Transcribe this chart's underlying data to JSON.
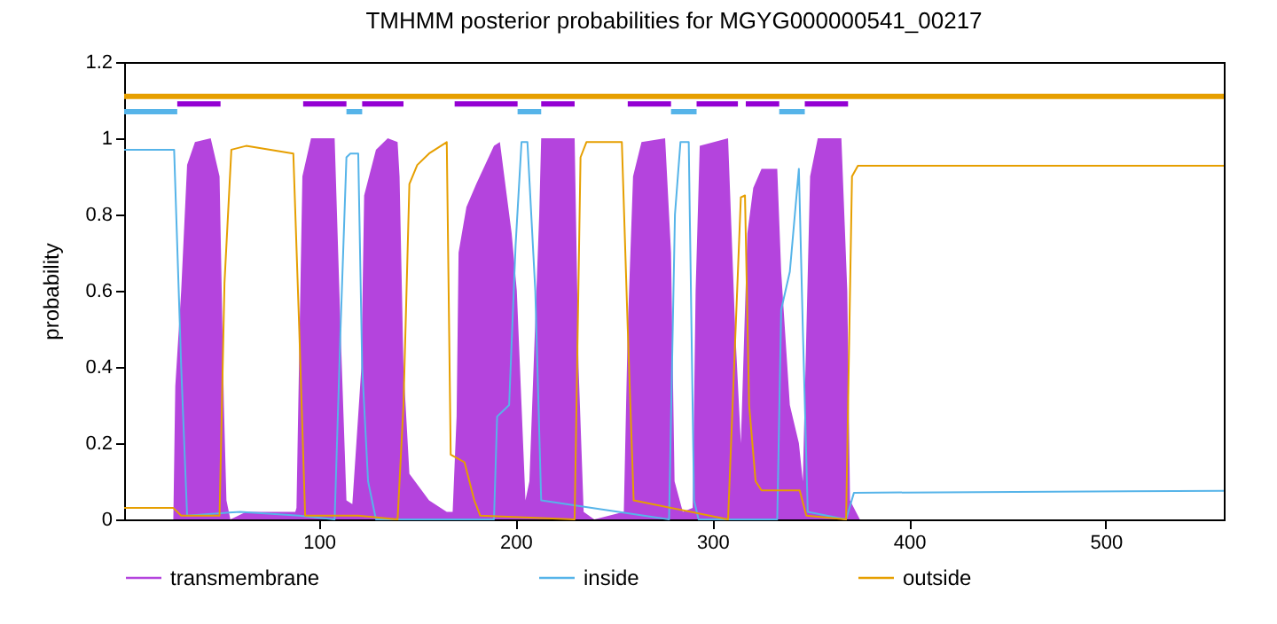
{
  "chart_data": {
    "type": "line",
    "title": "TMHMM posterior probabilities for MGYG000000541_00217",
    "ylabel": "probability",
    "xlim": [
      1,
      560
    ],
    "xticks": [
      100,
      200,
      300,
      400,
      500
    ],
    "ylim": [
      0,
      1.2
    ],
    "yticks": [
      {
        "value": 0,
        "label": "0"
      },
      0.2,
      0.4,
      0.6,
      0.8,
      {
        "value": 1,
        "label": "1"
      },
      1.2
    ],
    "grid": false,
    "legend": "bottom",
    "marker": "none",
    "series": [
      {
        "name": "transmembrane",
        "type": "area",
        "color": "#b444dd",
        "x": [
          1,
          26,
          27,
          30,
          33,
          37,
          45,
          49.5,
          51.7,
          53,
          55,
          63,
          75,
          88,
          88.6,
          91.6,
          96,
          108,
          111,
          114,
          117,
          121.6,
          123,
          129,
          135,
          140,
          141,
          143,
          146,
          156,
          165,
          168,
          170,
          171,
          175,
          180,
          189,
          192,
          198,
          200.6,
          203,
          205,
          207,
          212,
          213,
          230,
          232,
          234.6,
          240,
          255,
          257,
          259.7,
          264,
          276,
          279,
          280.8,
          285,
          290,
          291.5,
          293.6,
          308,
          311.6,
          314.5,
          317.8,
          320.8,
          325,
          333,
          335,
          339.4,
          344,
          346,
          347.6,
          349.7,
          353.6,
          365.6,
          368.6,
          370,
          375,
          560
        ],
        "values": [
          0,
          0,
          0.35,
          0.6,
          0.93,
          0.99,
          1.0,
          0.9,
          0.3,
          0.05,
          0,
          0.02,
          0.02,
          0.02,
          0.03,
          0.9,
          1.0,
          1.0,
          0.5,
          0.05,
          0.04,
          0.4,
          0.85,
          0.97,
          1.0,
          0.99,
          0.9,
          0.4,
          0.12,
          0.05,
          0.02,
          0.02,
          0.27,
          0.7,
          0.82,
          0.88,
          0.98,
          0.99,
          0.75,
          0.6,
          0.3,
          0.05,
          0.1,
          0.8,
          1.0,
          1.0,
          0.4,
          0.02,
          0,
          0.02,
          0.5,
          0.9,
          0.99,
          1.0,
          0.7,
          0.1,
          0.02,
          0.03,
          0.6,
          0.98,
          1.0,
          0.5,
          0.2,
          0.75,
          0.87,
          0.92,
          0.92,
          0.65,
          0.3,
          0.2,
          0.1,
          0.45,
          0.9,
          1.0,
          1.0,
          0.6,
          0.05,
          0,
          0
        ]
      },
      {
        "name": "inside",
        "color": "#56b4e9",
        "x": [
          1,
          26.4,
          30,
          33,
          60,
          90,
          108,
          111,
          114,
          116,
          120,
          122,
          125,
          129,
          189,
          190.6,
          196.7,
          200,
          203,
          206,
          210,
          213,
          278,
          281,
          283.8,
          288,
          290.7,
          293,
          333,
          335,
          339.4,
          344,
          346,
          348.5,
          368,
          372,
          560
        ],
        "values": [
          0.97,
          0.97,
          0.4,
          0.01,
          0.02,
          0.01,
          0,
          0.5,
          0.95,
          0.96,
          0.96,
          0.4,
          0.1,
          0,
          0,
          0.27,
          0.3,
          0.72,
          0.99,
          0.99,
          0.6,
          0.05,
          0,
          0.8,
          0.99,
          0.99,
          0.05,
          0,
          0,
          0.55,
          0.65,
          0.92,
          0.5,
          0.02,
          0,
          0.07,
          0.075
        ]
      },
      {
        "name": "outside",
        "color": "#e69f00",
        "x": [
          1,
          26,
          30,
          49.5,
          52,
          55.5,
          63,
          87,
          90,
          93,
          120,
          140,
          143,
          146,
          150,
          156,
          165,
          167,
          174,
          179,
          182,
          230,
          233,
          236,
          254,
          257,
          260,
          308,
          314.5,
          316.6,
          318.7,
          322,
          325,
          344.4,
          347.8,
          368,
          371,
          374,
          560
        ],
        "values": [
          0.03,
          0.03,
          0.01,
          0.01,
          0.62,
          0.97,
          0.98,
          0.96,
          0.5,
          0.01,
          0.01,
          0,
          0.3,
          0.88,
          0.93,
          0.96,
          0.99,
          0.17,
          0.15,
          0.05,
          0.01,
          0,
          0.95,
          0.99,
          0.99,
          0.5,
          0.05,
          0,
          0.845,
          0.85,
          0.3,
          0.1,
          0.076,
          0.076,
          0.01,
          0,
          0.9,
          0.928,
          0.928
        ]
      },
      {
        "color": "#e69f00",
        "x": [
          1,
          560
        ],
        "values": [
          1.11,
          1.11
        ]
      },
      {
        "color": "#56b4e9",
        "x": [
          1,
          28,
          29,
          114,
          122,
          123,
          201,
          213,
          214,
          279,
          292,
          293,
          334,
          347
        ],
        "values": [
          1.07,
          1.07,
          null,
          1.07,
          1.07,
          null,
          1.07,
          1.07,
          null,
          1.07,
          1.07,
          null,
          1.07,
          1.07
        ]
      },
      {
        "color": "#9400d3",
        "x": [
          28,
          50,
          51,
          92,
          114,
          115,
          122,
          143,
          144,
          169,
          201,
          202,
          213,
          230,
          231,
          257,
          279,
          280,
          292,
          313,
          314,
          317,
          334,
          335,
          347,
          369
        ],
        "values": [
          1.09,
          1.09,
          null,
          1.09,
          1.09,
          null,
          1.09,
          1.09,
          null,
          1.09,
          1.09,
          null,
          1.09,
          1.09,
          null,
          1.09,
          1.09,
          null,
          1.09,
          1.09,
          null,
          1.09,
          1.09,
          null,
          1.09,
          1.09
        ]
      }
    ]
  }
}
